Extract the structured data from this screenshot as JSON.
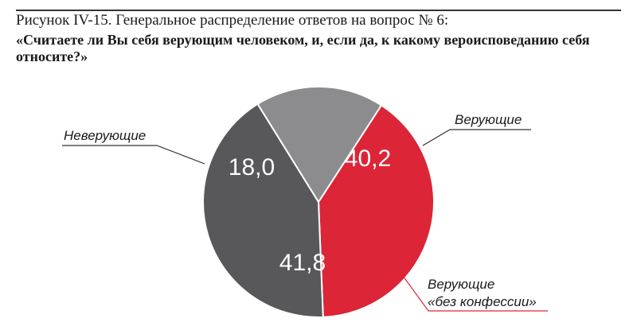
{
  "figure": {
    "caption": "Рисунок IV-15. Генеральное распределение ответов на вопрос № 6:",
    "question": "«Считаете ли Вы себя верующим человеком, и, если да, к какому вероисповеданию себя относите?»"
  },
  "chart_data": {
    "type": "pie",
    "title": "Рисунок IV-15. Генеральное распределение ответов на вопрос № 6:",
    "subtitle": "«Считаете ли Вы себя верующим человеком, и, если да, к какому вероисповеданию себя относите?»",
    "slices": [
      {
        "label": "Верующие",
        "value": 40.2,
        "value_label": "40,2",
        "color": "#dc2537",
        "leader_color": "#333333"
      },
      {
        "label_lines": [
          "Верующие",
          "«без конфессии»"
        ],
        "value": 41.8,
        "value_label": "41,8",
        "color": "#58585a",
        "leader_color": "#dc2537"
      },
      {
        "label": "Неверующие",
        "value": 18.0,
        "value_label": "18,0",
        "color": "#8c8c8e",
        "leader_color": "#333333"
      }
    ],
    "units": "%",
    "legend": "outside-callouts",
    "grid": false
  }
}
